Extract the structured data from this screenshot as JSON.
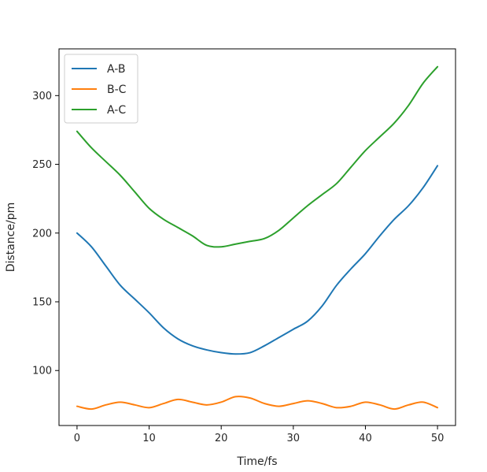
{
  "chart_data": {
    "type": "line",
    "title": "",
    "xlabel": "Time/fs",
    "ylabel": "Distance/pm",
    "xlim": [
      -2.5,
      52.5
    ],
    "ylim": [
      60,
      334
    ],
    "xticks": [
      0,
      10,
      20,
      30,
      40,
      50
    ],
    "yticks": [
      100,
      150,
      200,
      250,
      300
    ],
    "grid": false,
    "legend": "top-left",
    "series": [
      {
        "name": "A-B",
        "color": "#1f77b4",
        "points": [
          [
            0,
            200
          ],
          [
            2,
            190
          ],
          [
            4,
            176
          ],
          [
            6,
            162
          ],
          [
            8,
            152
          ],
          [
            10,
            142
          ],
          [
            12,
            131
          ],
          [
            14,
            123
          ],
          [
            16,
            118
          ],
          [
            18,
            115
          ],
          [
            20,
            113
          ],
          [
            22,
            112
          ],
          [
            24,
            113
          ],
          [
            26,
            118
          ],
          [
            28,
            124
          ],
          [
            30,
            130
          ],
          [
            32,
            136
          ],
          [
            34,
            147
          ],
          [
            36,
            162
          ],
          [
            38,
            174
          ],
          [
            40,
            185
          ],
          [
            42,
            198
          ],
          [
            44,
            210
          ],
          [
            46,
            220
          ],
          [
            48,
            233
          ],
          [
            50,
            249
          ]
        ]
      },
      {
        "name": "B-C",
        "color": "#ff7f0e",
        "points": [
          [
            0,
            74
          ],
          [
            2,
            72
          ],
          [
            4,
            75
          ],
          [
            6,
            77
          ],
          [
            8,
            75
          ],
          [
            10,
            73
          ],
          [
            12,
            76
          ],
          [
            14,
            79
          ],
          [
            16,
            77
          ],
          [
            18,
            75
          ],
          [
            20,
            77
          ],
          [
            22,
            81
          ],
          [
            24,
            80
          ],
          [
            26,
            76
          ],
          [
            28,
            74
          ],
          [
            30,
            76
          ],
          [
            32,
            78
          ],
          [
            34,
            76
          ],
          [
            36,
            73
          ],
          [
            38,
            74
          ],
          [
            40,
            77
          ],
          [
            42,
            75
          ],
          [
            44,
            72
          ],
          [
            46,
            75
          ],
          [
            48,
            77
          ],
          [
            50,
            73
          ]
        ]
      },
      {
        "name": "A-C",
        "color": "#2ca02c",
        "points": [
          [
            0,
            274
          ],
          [
            2,
            262
          ],
          [
            4,
            252
          ],
          [
            6,
            242
          ],
          [
            8,
            230
          ],
          [
            10,
            218
          ],
          [
            12,
            210
          ],
          [
            14,
            204
          ],
          [
            16,
            198
          ],
          [
            18,
            191
          ],
          [
            20,
            190
          ],
          [
            22,
            192
          ],
          [
            24,
            194
          ],
          [
            26,
            196
          ],
          [
            28,
            202
          ],
          [
            30,
            211
          ],
          [
            32,
            220
          ],
          [
            34,
            228
          ],
          [
            36,
            236
          ],
          [
            38,
            248
          ],
          [
            40,
            260
          ],
          [
            42,
            270
          ],
          [
            44,
            280
          ],
          [
            46,
            293
          ],
          [
            48,
            309
          ],
          [
            50,
            321
          ]
        ]
      }
    ]
  }
}
